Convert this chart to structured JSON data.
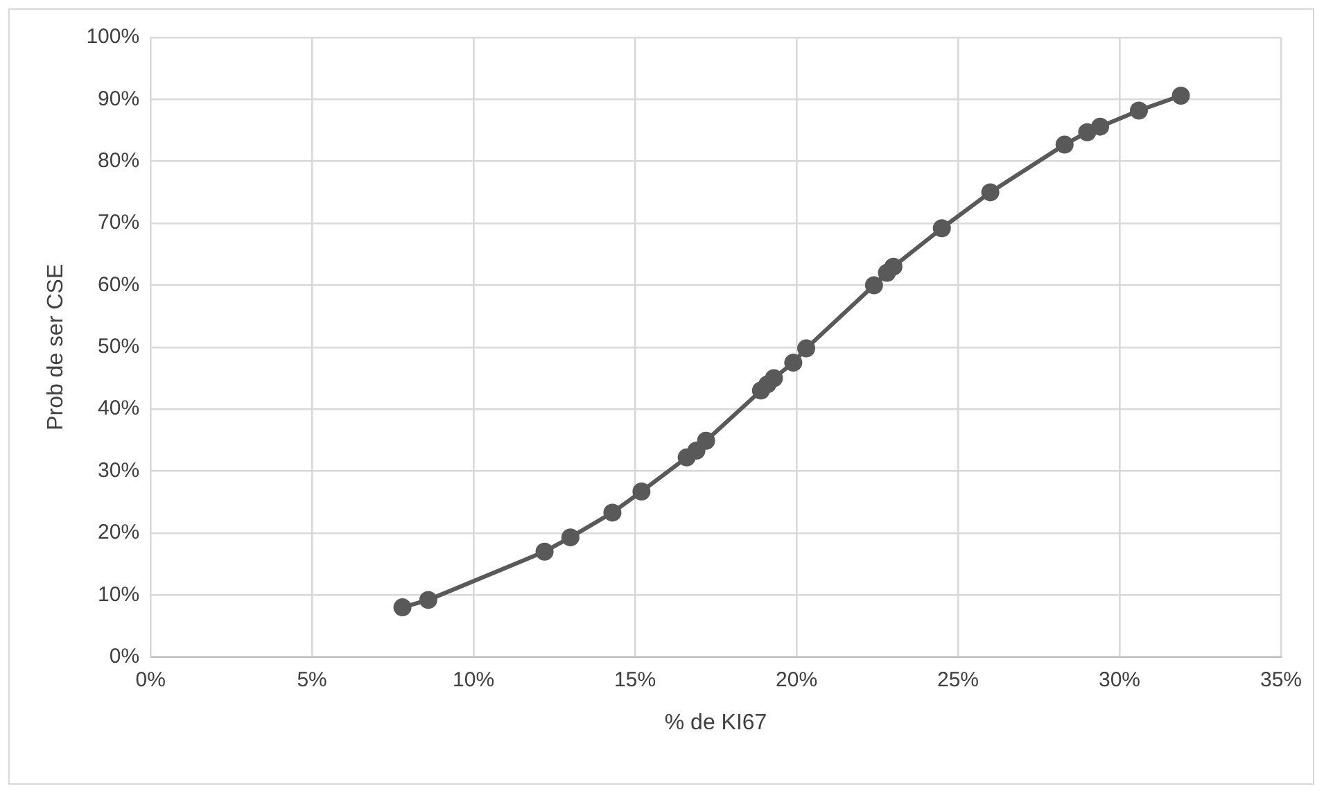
{
  "chart_data": {
    "type": "line",
    "xlabel": "% de KI67",
    "ylabel": "Prob de ser CSE",
    "series": [
      {
        "color": "#595959",
        "x": [
          7.8,
          8.6,
          12.2,
          13.0,
          14.3,
          15.2,
          16.6,
          16.9,
          17.2,
          18.9,
          19.1,
          19.3,
          19.9,
          20.3,
          22.4,
          22.8,
          23.0,
          24.5,
          26.0,
          28.3,
          29.0,
          29.4,
          30.6,
          31.9
        ],
        "values": [
          8,
          9.2,
          17,
          19.3,
          23.3,
          26.7,
          32.2,
          33.3,
          34.9,
          43,
          44,
          45,
          47.5,
          49.8,
          60,
          62,
          63,
          69.2,
          75,
          82.7,
          84.7,
          85.6,
          88.2,
          90.6
        ]
      }
    ],
    "xlim": [
      0,
      35
    ],
    "xticks": [
      {
        "value": 0,
        "label": "0%"
      },
      {
        "value": 5,
        "label": "5%"
      },
      {
        "value": 10,
        "label": "10%"
      },
      {
        "value": 15,
        "label": "15%"
      },
      {
        "value": 20,
        "label": "20%"
      },
      {
        "value": 25,
        "label": "25%"
      },
      {
        "value": 30,
        "label": "30%"
      },
      {
        "value": 35,
        "label": "35%"
      }
    ],
    "ylim": [
      0,
      100
    ],
    "yticks": [
      {
        "value": 0,
        "label": "0%"
      },
      {
        "value": 10,
        "label": "10%"
      },
      {
        "value": 20,
        "label": "20%"
      },
      {
        "value": 30,
        "label": "30%"
      },
      {
        "value": 40,
        "label": "40%"
      },
      {
        "value": 50,
        "label": "50%"
      },
      {
        "value": 60,
        "label": "60%"
      },
      {
        "value": 70,
        "label": "70%"
      },
      {
        "value": 80,
        "label": "80%"
      },
      {
        "value": 90,
        "label": "90%"
      },
      {
        "value": 100,
        "label": "100%"
      }
    ],
    "grid": true,
    "legend": false,
    "marker": "circle",
    "line_style": "solid"
  }
}
